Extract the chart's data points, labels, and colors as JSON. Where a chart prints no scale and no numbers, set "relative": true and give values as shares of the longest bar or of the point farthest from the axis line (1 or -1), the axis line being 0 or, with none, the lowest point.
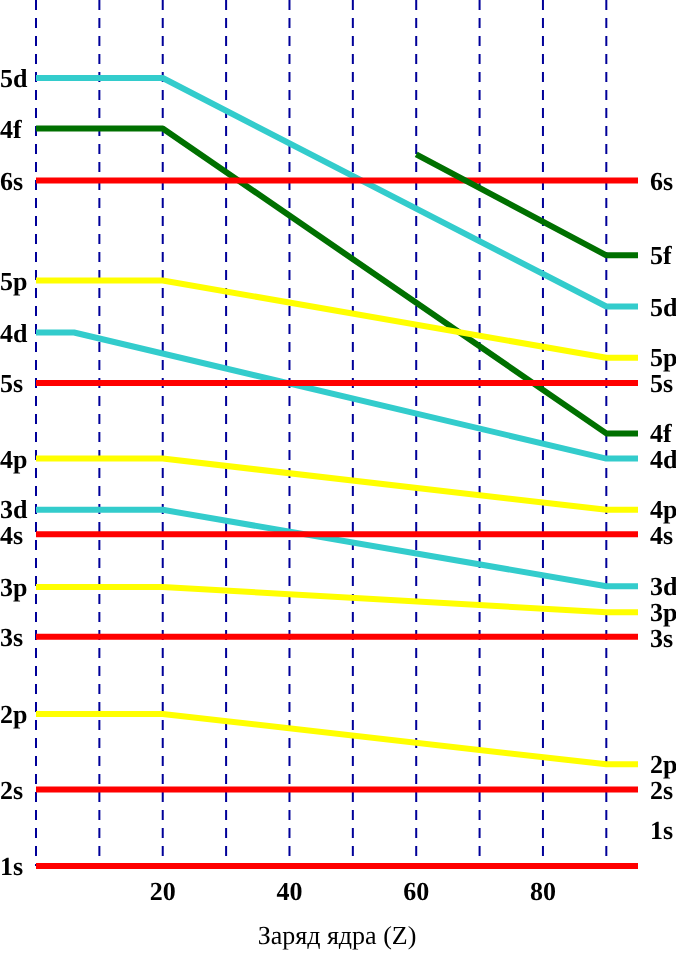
{
  "chart_data": {
    "type": "line",
    "relative": true,
    "xlabel": "Заряд ядра (Z)",
    "xlim": [
      0,
      95
    ],
    "xticks": [
      {
        "value": 0,
        "label": null
      },
      {
        "value": 10,
        "label": null
      },
      20,
      {
        "value": 30,
        "label": null
      },
      40,
      {
        "value": 50,
        "label": null
      },
      60,
      {
        "value": 70,
        "label": null
      },
      80,
      {
        "value": 90,
        "label": null
      }
    ],
    "grid": "x",
    "legend": false,
    "marker": "none",
    "line_style": "solid",
    "series": [
      {
        "name": "5d",
        "color": "#33cccc",
        "x": [
          0,
          20,
          90,
          95
        ],
        "values": [
          1,
          1,
          0.71,
          0.71
        ]
      },
      {
        "name": "4f",
        "color": "#007000",
        "x": [
          0,
          20,
          90,
          95
        ],
        "values": [
          0.936,
          0.936,
          0.549,
          0.549
        ]
      },
      {
        "name": "6s",
        "color": "#ff0000",
        "x": [
          0,
          95
        ],
        "values": [
          0.87,
          0.87
        ]
      },
      {
        "name": "5f",
        "color": "#007000",
        "x": [
          60,
          90,
          95
        ],
        "values": [
          0.903,
          0.775,
          0.775
        ]
      },
      {
        "name": "5p",
        "color": "#ffff00",
        "x": [
          0,
          20,
          90,
          95
        ],
        "values": [
          0.743,
          0.743,
          0.645,
          0.645
        ]
      },
      {
        "name": "4d",
        "color": "#33cccc",
        "x": [
          0,
          6,
          90,
          95
        ],
        "values": [
          0.677,
          0.677,
          0.517,
          0.517
        ]
      },
      {
        "name": "5s",
        "color": "#ff0000",
        "x": [
          0,
          95
        ],
        "values": [
          0.613,
          0.613
        ]
      },
      {
        "name": "4p",
        "color": "#ffff00",
        "x": [
          0,
          20,
          90,
          95
        ],
        "values": [
          0.517,
          0.517,
          0.452,
          0.452
        ]
      },
      {
        "name": "3d",
        "color": "#33cccc",
        "x": [
          0,
          20,
          90,
          95
        ],
        "values": [
          0.452,
          0.452,
          0.355,
          0.355
        ]
      },
      {
        "name": "4s",
        "color": "#ff0000",
        "x": [
          0,
          95
        ],
        "values": [
          0.421,
          0.421
        ]
      },
      {
        "name": "3p",
        "color": "#ffff00",
        "x": [
          0,
          20,
          90,
          95
        ],
        "values": [
          0.354,
          0.354,
          0.322,
          0.322
        ]
      },
      {
        "name": "3s",
        "color": "#ff0000",
        "x": [
          0,
          95
        ],
        "values": [
          0.291,
          0.291
        ]
      },
      {
        "name": "2p",
        "color": "#ffff00",
        "x": [
          0,
          20,
          90,
          95
        ],
        "values": [
          0.193,
          0.193,
          0.129,
          0.129
        ]
      },
      {
        "name": "2s",
        "color": "#ff0000",
        "x": [
          0,
          95
        ],
        "values": [
          0.097,
          0.097
        ]
      },
      {
        "name": "1s",
        "color": "#ff0000",
        "x": [
          0,
          95
        ],
        "values": [
          0,
          0
        ]
      }
    ]
  }
}
